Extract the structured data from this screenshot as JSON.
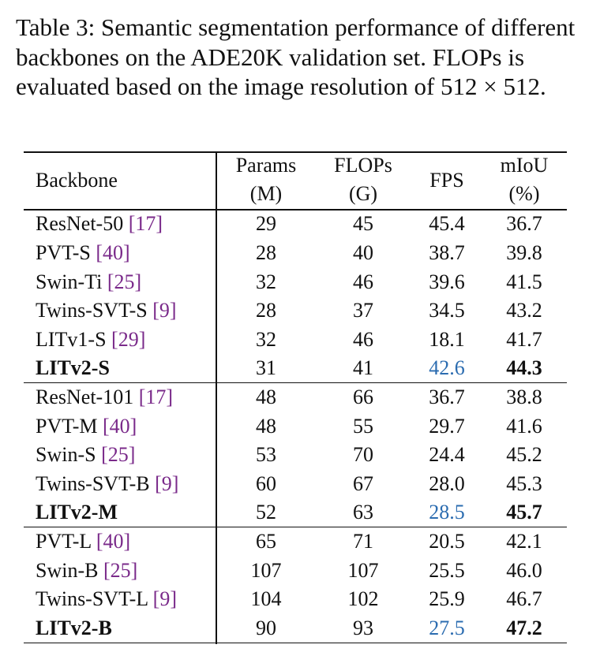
{
  "caption": {
    "label": "Table 3:",
    "text": "Semantic segmentation performance of different backbones on the ADE20K validation set. FLOPs is evaluated based on the image resolution of 512 × 512."
  },
  "table": {
    "header": [
      [
        "Backbone"
      ],
      [
        "Params",
        "(M)"
      ],
      [
        "FLOPs",
        "(G)"
      ],
      [
        "FPS"
      ],
      [
        "mIoU",
        "(%)"
      ]
    ],
    "cite_color": "#7a2a8a",
    "highlight_color": "#2b6cb0",
    "groups": [
      [
        {
          "name": "ResNet-50",
          "cite": "[17]",
          "cells": [
            "29",
            "45",
            "45.4",
            "36.7"
          ]
        },
        {
          "name": "PVT-S",
          "cite": "[40]",
          "cells": [
            "28",
            "40",
            "38.7",
            "39.8"
          ]
        },
        {
          "name": "Swin-Ti",
          "cite": "[25]",
          "cells": [
            "32",
            "46",
            "39.6",
            "41.5"
          ]
        },
        {
          "name": "Twins-SVT-S",
          "cite": "[9]",
          "cells": [
            "28",
            "37",
            "34.5",
            "43.2"
          ]
        },
        {
          "name": "LITv1-S",
          "cite": "[29]",
          "cells": [
            "32",
            "46",
            "18.1",
            "41.7"
          ]
        },
        {
          "name": "LITv2-S",
          "bold": true,
          "cells": [
            "31",
            "41",
            "42.6",
            "44.3"
          ]
        }
      ],
      [
        {
          "name": "ResNet-101",
          "cite": "[17]",
          "cells": [
            "48",
            "66",
            "36.7",
            "38.8"
          ]
        },
        {
          "name": "PVT-M",
          "cite": "[40]",
          "cells": [
            "48",
            "55",
            "29.7",
            "41.6"
          ]
        },
        {
          "name": "Swin-S",
          "cite": "[25]",
          "cells": [
            "53",
            "70",
            "24.4",
            "45.2"
          ]
        },
        {
          "name": "Twins-SVT-B",
          "cite": "[9]",
          "cells": [
            "60",
            "67",
            "28.0",
            "45.3"
          ]
        },
        {
          "name": "LITv2-M",
          "bold": true,
          "cells": [
            "52",
            "63",
            "28.5",
            "45.7"
          ]
        }
      ],
      [
        {
          "name": "PVT-L",
          "cite": "[40]",
          "cells": [
            "65",
            "71",
            "20.5",
            "42.1"
          ]
        },
        {
          "name": "Swin-B",
          "cite": "[25]",
          "cells": [
            "107",
            "107",
            "25.5",
            "46.0"
          ]
        },
        {
          "name": "Twins-SVT-L",
          "cite": "[9]",
          "cells": [
            "104",
            "102",
            "25.9",
            "46.7"
          ]
        },
        {
          "name": "LITv2-B",
          "bold": true,
          "cells": [
            "90",
            "93",
            "27.5",
            "47.2"
          ]
        }
      ]
    ]
  }
}
